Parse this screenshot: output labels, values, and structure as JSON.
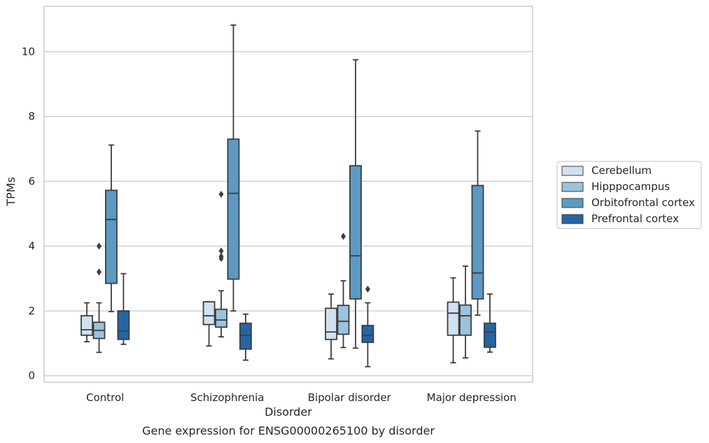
{
  "chart_data": {
    "type": "box",
    "caption": "Gene expression for ENSG00000265100 by disorder",
    "xlabel": "Disorder",
    "ylabel": "TPMs",
    "ylim": [
      -0.2,
      11.4
    ],
    "yticks": [
      0,
      2,
      4,
      6,
      8,
      10
    ],
    "grid": true,
    "legend_position": "right",
    "categories": [
      "Control",
      "Schizophrenia",
      "Bipolar disorder",
      "Major depression"
    ],
    "series": [
      {
        "name": "Cerebellum",
        "color": "#d2e1f0",
        "boxes": [
          {
            "whislo": 1.05,
            "q1": 1.25,
            "med": 1.42,
            "q3": 1.85,
            "whishi": 2.25,
            "fliers": []
          },
          {
            "whislo": 0.92,
            "q1": 1.58,
            "med": 1.85,
            "q3": 2.28,
            "whishi": 2.28,
            "fliers": []
          },
          {
            "whislo": 0.52,
            "q1": 1.12,
            "med": 1.35,
            "q3": 2.08,
            "whishi": 2.52,
            "fliers": []
          },
          {
            "whislo": 0.4,
            "q1": 1.25,
            "med": 1.93,
            "q3": 2.27,
            "whishi": 3.02,
            "fliers": []
          }
        ]
      },
      {
        "name": "Hipppocampus",
        "color": "#9ac3dd",
        "boxes": [
          {
            "whislo": 0.72,
            "q1": 1.15,
            "med": 1.4,
            "q3": 1.65,
            "whishi": 2.25,
            "fliers": [
              3.2,
              4.0
            ]
          },
          {
            "whislo": 1.2,
            "q1": 1.5,
            "med": 1.72,
            "q3": 2.05,
            "whishi": 2.62,
            "fliers": [
              3.62,
              3.68,
              3.85,
              5.6
            ]
          },
          {
            "whislo": 0.87,
            "q1": 1.28,
            "med": 1.68,
            "q3": 2.17,
            "whishi": 2.93,
            "fliers": [
              4.3
            ]
          },
          {
            "whislo": 0.55,
            "q1": 1.25,
            "med": 1.85,
            "q3": 2.18,
            "whishi": 3.38,
            "fliers": []
          }
        ]
      },
      {
        "name": "Orbitofrontal cortex",
        "color": "#5b9ac3",
        "boxes": [
          {
            "whislo": 1.98,
            "q1": 2.85,
            "med": 4.82,
            "q3": 5.72,
            "whishi": 7.12,
            "fliers": []
          },
          {
            "whislo": 2.0,
            "q1": 2.98,
            "med": 5.63,
            "q3": 7.3,
            "whishi": 10.82,
            "fliers": []
          },
          {
            "whislo": 0.85,
            "q1": 2.37,
            "med": 3.7,
            "q3": 6.48,
            "whishi": 9.75,
            "fliers": []
          },
          {
            "whislo": 1.87,
            "q1": 2.37,
            "med": 3.17,
            "q3": 5.87,
            "whishi": 7.55,
            "fliers": []
          }
        ]
      },
      {
        "name": "Prefrontal cortex",
        "color": "#2565a6",
        "boxes": [
          {
            "whislo": 0.97,
            "q1": 1.12,
            "med": 1.38,
            "q3": 2.0,
            "whishi": 3.15,
            "fliers": []
          },
          {
            "whislo": 0.48,
            "q1": 0.82,
            "med": 1.25,
            "q3": 1.62,
            "whishi": 1.9,
            "fliers": []
          },
          {
            "whislo": 0.28,
            "q1": 1.03,
            "med": 1.25,
            "q3": 1.55,
            "whishi": 2.25,
            "fliers": [
              2.67
            ]
          },
          {
            "whislo": 0.73,
            "q1": 0.88,
            "med": 1.35,
            "q3": 1.62,
            "whishi": 2.52,
            "fliers": []
          }
        ]
      }
    ]
  }
}
